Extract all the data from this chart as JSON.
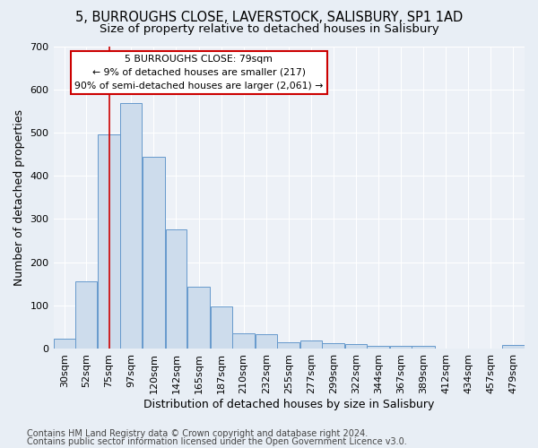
{
  "title": "5, BURROUGHS CLOSE, LAVERSTOCK, SALISBURY, SP1 1AD",
  "subtitle": "Size of property relative to detached houses in Salisbury",
  "xlabel": "Distribution of detached houses by size in Salisbury",
  "ylabel": "Number of detached properties",
  "footer1": "Contains HM Land Registry data © Crown copyright and database right 2024.",
  "footer2": "Contains public sector information licensed under the Open Government Licence v3.0.",
  "annotation_title": "5 BURROUGHS CLOSE: 79sqm",
  "annotation_line1": "← 9% of detached houses are smaller (217)",
  "annotation_line2": "90% of semi-detached houses are larger (2,061) →",
  "bar_color": "#cddcec",
  "bar_edge_color": "#6699cc",
  "vline_color": "#cc0000",
  "vline_x": 75,
  "categories": [
    "30sqm",
    "52sqm",
    "75sqm",
    "97sqm",
    "120sqm",
    "142sqm",
    "165sqm",
    "187sqm",
    "210sqm",
    "232sqm",
    "255sqm",
    "277sqm",
    "299sqm",
    "322sqm",
    "344sqm",
    "367sqm",
    "389sqm",
    "412sqm",
    "434sqm",
    "457sqm",
    "479sqm"
  ],
  "bin_edges": [
    19,
    41,
    63,
    86,
    108,
    131,
    153,
    176,
    198,
    221,
    243,
    266,
    288,
    311,
    333,
    356,
    378,
    401,
    423,
    446,
    468,
    491
  ],
  "values": [
    22,
    155,
    495,
    568,
    443,
    275,
    144,
    97,
    35,
    33,
    15,
    18,
    12,
    11,
    7,
    6,
    6,
    0,
    0,
    0,
    8
  ],
  "ylim": [
    0,
    700
  ],
  "yticks": [
    0,
    100,
    200,
    300,
    400,
    500,
    600,
    700
  ],
  "background_color": "#e8eef5",
  "plot_bg_color": "#edf1f7",
  "grid_color": "#ffffff",
  "title_fontsize": 10.5,
  "subtitle_fontsize": 9.5,
  "axis_label_fontsize": 9,
  "tick_fontsize": 8,
  "footer_fontsize": 7
}
